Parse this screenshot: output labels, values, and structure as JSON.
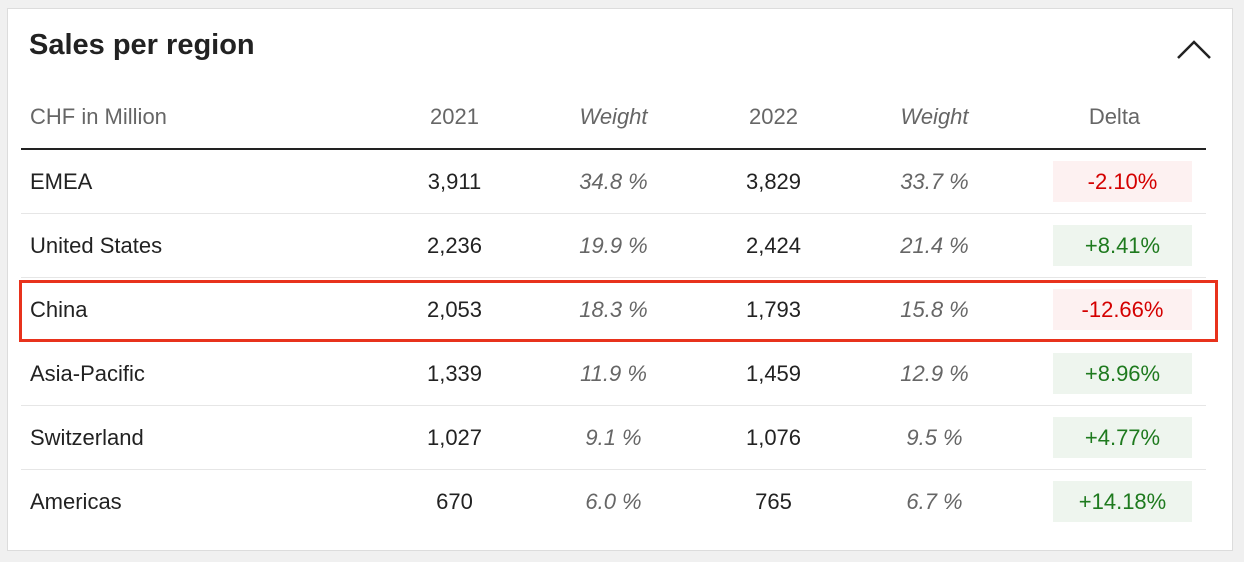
{
  "panel": {
    "title": "Sales per region",
    "collapse_icon": "chevron-up-icon"
  },
  "table": {
    "headers": {
      "region": "CHF in Million",
      "y2021": "2021",
      "weight2021": "Weight",
      "y2022": "2022",
      "weight2022": "Weight",
      "delta": "Delta"
    },
    "rows": [
      {
        "region": "EMEA",
        "y2021": "3,911",
        "w2021": "34.8 %",
        "y2022": "3,829",
        "w2022": "33.7 %",
        "delta": "-2.10%",
        "trend": "negative"
      },
      {
        "region": "United States",
        "y2021": "2,236",
        "w2021": "19.9 %",
        "y2022": "2,424",
        "w2022": "21.4 %",
        "delta": "+8.41%",
        "trend": "positive"
      },
      {
        "region": "China",
        "y2021": "2,053",
        "w2021": "18.3 %",
        "y2022": "1,793",
        "w2022": "15.8 %",
        "delta": "-12.66%",
        "trend": "negative"
      },
      {
        "region": "Asia-Pacific",
        "y2021": "1,339",
        "w2021": "11.9 %",
        "y2022": "1,459",
        "w2022": "12.9 %",
        "delta": "+8.96%",
        "trend": "positive"
      },
      {
        "region": "Switzerland",
        "y2021": "1,027",
        "w2021": "9.1 %",
        "y2022": "1,076",
        "w2022": "9.5 %",
        "delta": "+4.77%",
        "trend": "positive"
      },
      {
        "region": "Americas",
        "y2021": "670",
        "w2021": "6.0 %",
        "y2022": "765",
        "w2022": "6.7 %",
        "delta": "+14.18%",
        "trend": "positive"
      }
    ]
  },
  "colors": {
    "negative_text": "#d40000",
    "negative_bg": "#fdf1f1",
    "positive_text": "#1e7a1e",
    "positive_bg": "#eef5ee",
    "highlight_border": "#e8321c"
  },
  "highlighted_row": "China"
}
